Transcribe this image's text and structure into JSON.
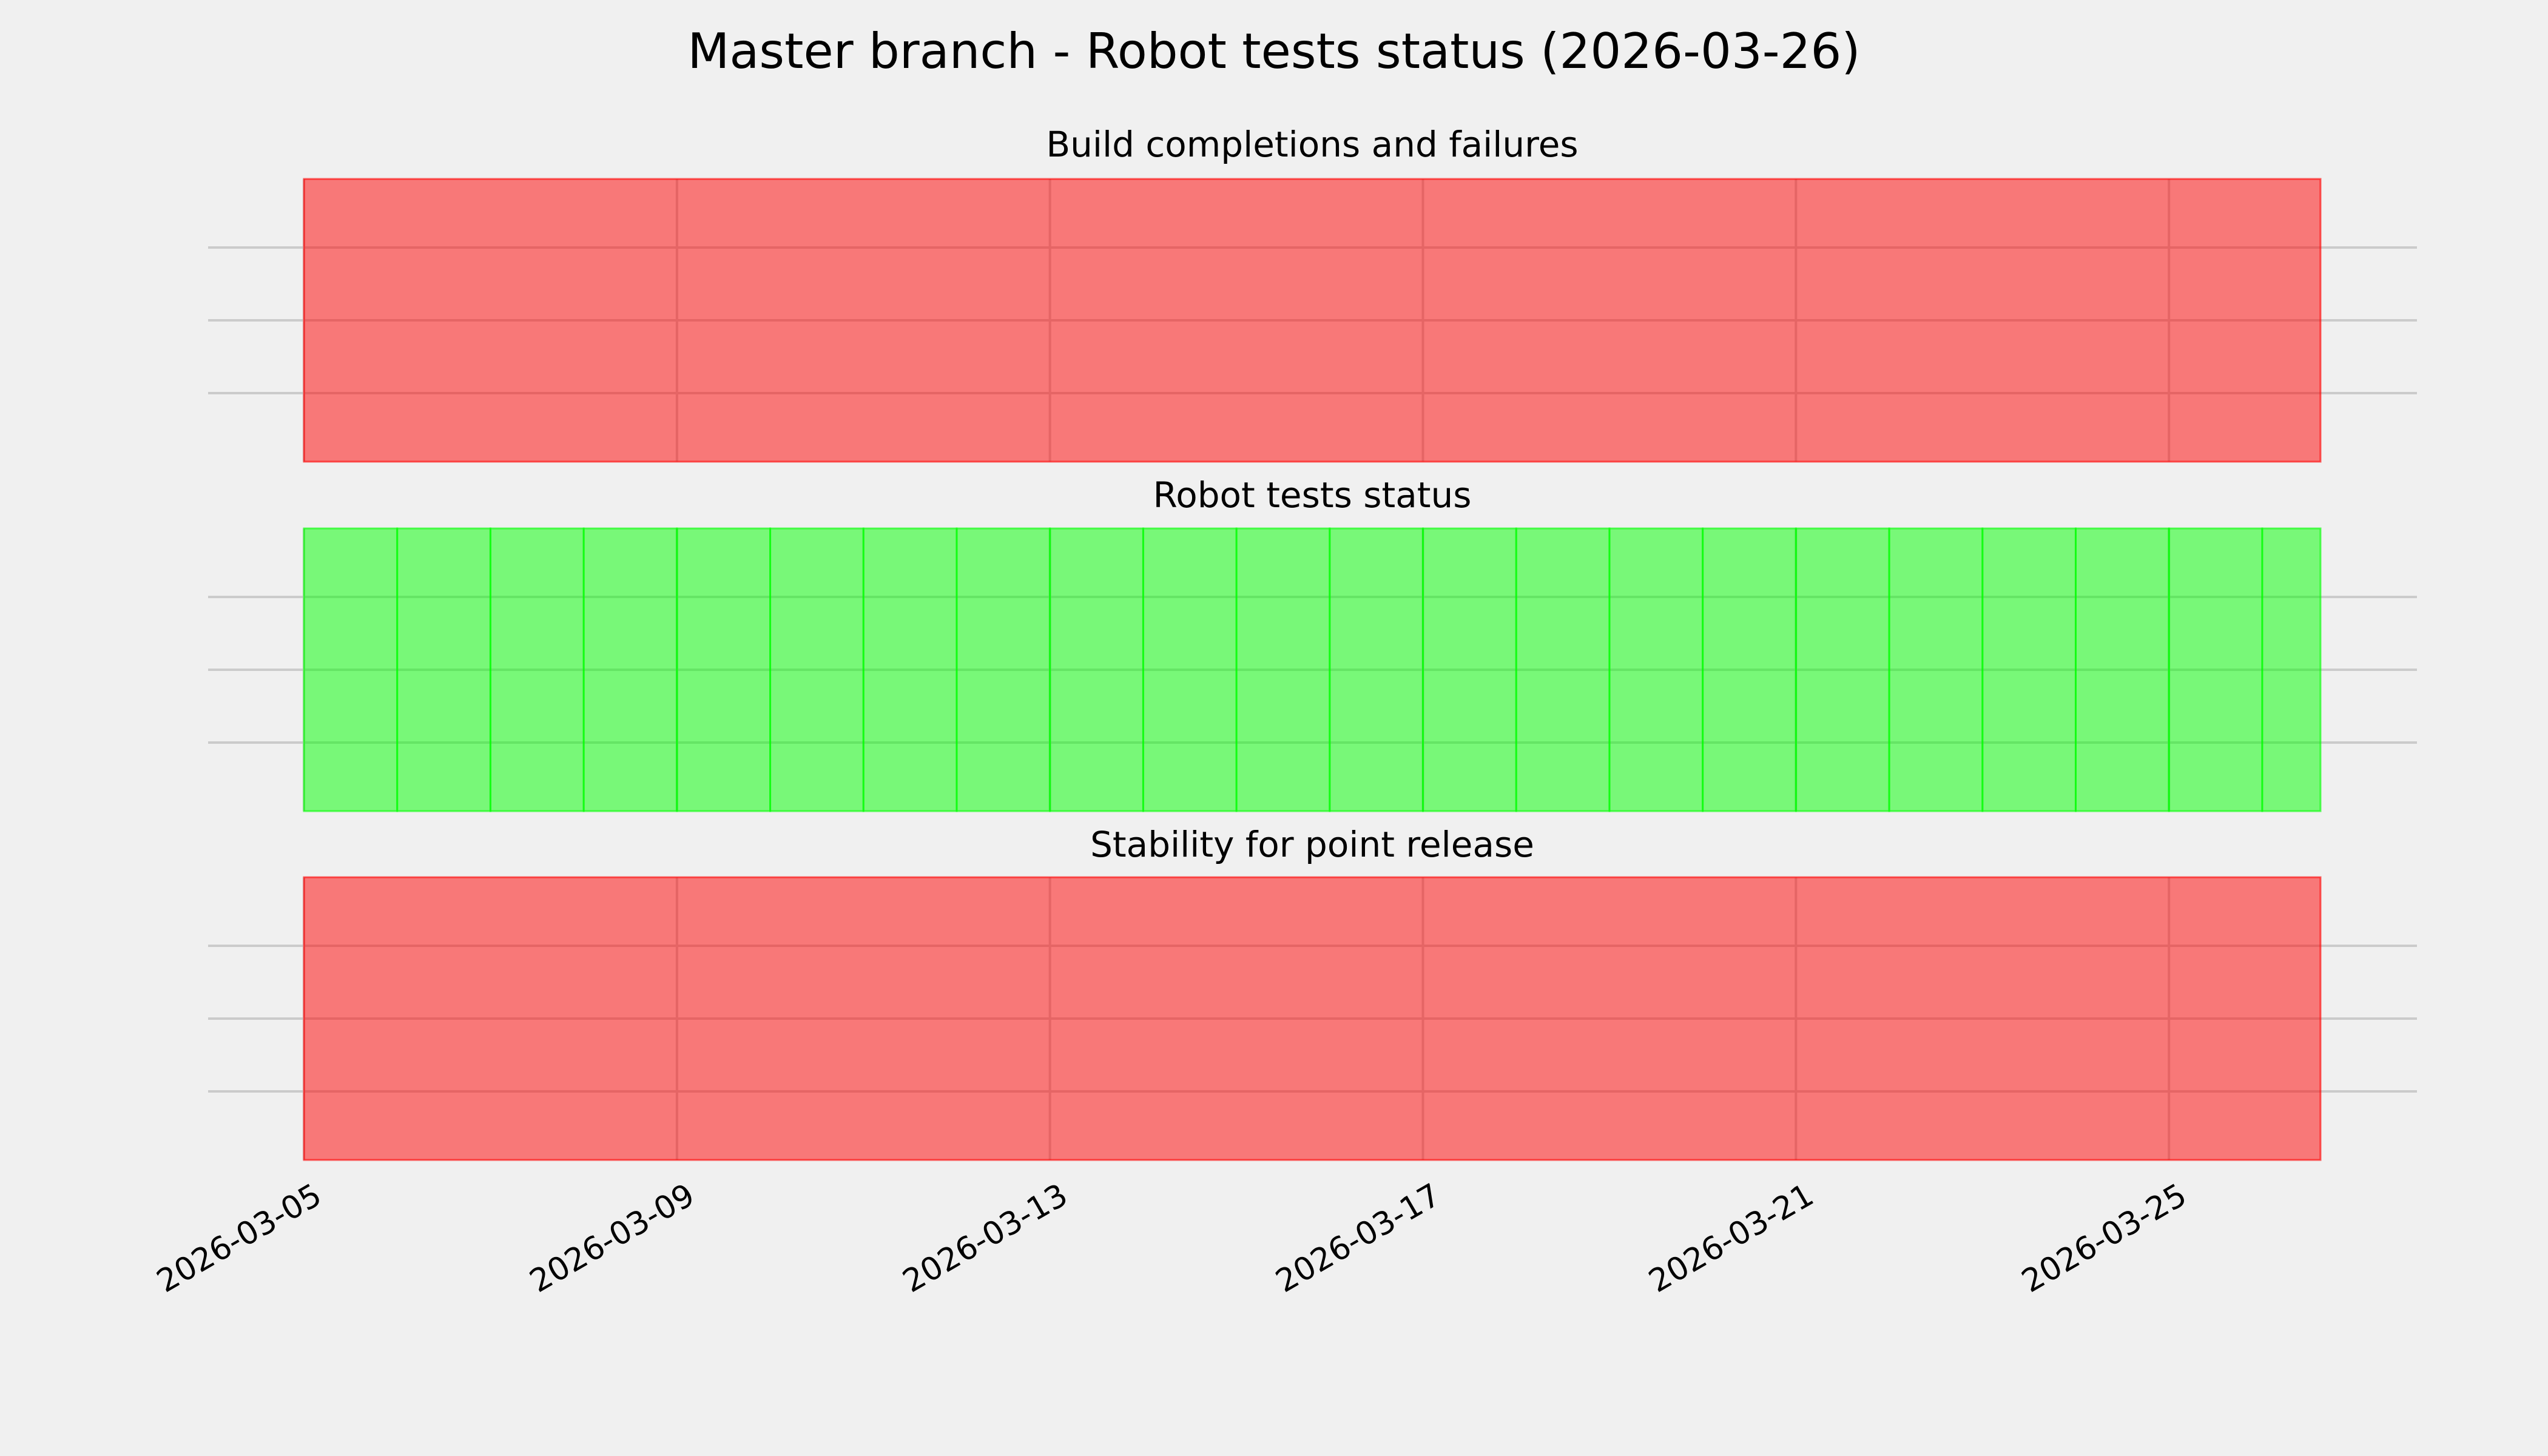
{
  "chart_data": {
    "type": "bar",
    "title": "Master branch - Robot tests status (2026-03-26)",
    "xlabel": "",
    "ylabel": "",
    "xlim": [
      "2026-03-05",
      "2026-03-26T15:00"
    ],
    "x_tick_labels": [
      "2026-03-05",
      "2026-03-09",
      "2026-03-13",
      "2026-03-17",
      "2026-03-21",
      "2026-03-25"
    ],
    "grid": true,
    "colors": {
      "fail": "#ff0000",
      "pass": "#00ff00",
      "background": "#f0f0f0",
      "grid": "#cbcbcb"
    },
    "panels": [
      {
        "title": "Build completions and failures",
        "spans": [
          {
            "start": "2026-03-05",
            "end": "2026-03-26T15:00",
            "status": "fail"
          }
        ]
      },
      {
        "title": "Robot tests status",
        "spans": [
          {
            "start": "2026-03-05",
            "end": "2026-03-06",
            "status": "pass"
          },
          {
            "start": "2026-03-06",
            "end": "2026-03-07",
            "status": "pass"
          },
          {
            "start": "2026-03-07",
            "end": "2026-03-08",
            "status": "pass"
          },
          {
            "start": "2026-03-08",
            "end": "2026-03-09",
            "status": "pass"
          },
          {
            "start": "2026-03-09",
            "end": "2026-03-10",
            "status": "pass"
          },
          {
            "start": "2026-03-10",
            "end": "2026-03-11",
            "status": "pass"
          },
          {
            "start": "2026-03-11",
            "end": "2026-03-12",
            "status": "pass"
          },
          {
            "start": "2026-03-12",
            "end": "2026-03-13",
            "status": "pass"
          },
          {
            "start": "2026-03-13",
            "end": "2026-03-14",
            "status": "pass"
          },
          {
            "start": "2026-03-14",
            "end": "2026-03-15",
            "status": "pass"
          },
          {
            "start": "2026-03-15",
            "end": "2026-03-16",
            "status": "pass"
          },
          {
            "start": "2026-03-16",
            "end": "2026-03-17",
            "status": "pass"
          },
          {
            "start": "2026-03-17",
            "end": "2026-03-18",
            "status": "pass"
          },
          {
            "start": "2026-03-18",
            "end": "2026-03-19",
            "status": "pass"
          },
          {
            "start": "2026-03-19",
            "end": "2026-03-20",
            "status": "pass"
          },
          {
            "start": "2026-03-20",
            "end": "2026-03-21",
            "status": "pass"
          },
          {
            "start": "2026-03-21",
            "end": "2026-03-22",
            "status": "pass"
          },
          {
            "start": "2026-03-22",
            "end": "2026-03-23",
            "status": "pass"
          },
          {
            "start": "2026-03-23",
            "end": "2026-03-24",
            "status": "pass"
          },
          {
            "start": "2026-03-24",
            "end": "2026-03-25",
            "status": "pass"
          },
          {
            "start": "2026-03-25",
            "end": "2026-03-26",
            "status": "pass"
          },
          {
            "start": "2026-03-26",
            "end": "2026-03-26T15:00",
            "status": "pass"
          }
        ]
      },
      {
        "title": "Stability for point release",
        "spans": [
          {
            "start": "2026-03-05",
            "end": "2026-03-26T15:00",
            "status": "fail"
          }
        ]
      }
    ]
  }
}
